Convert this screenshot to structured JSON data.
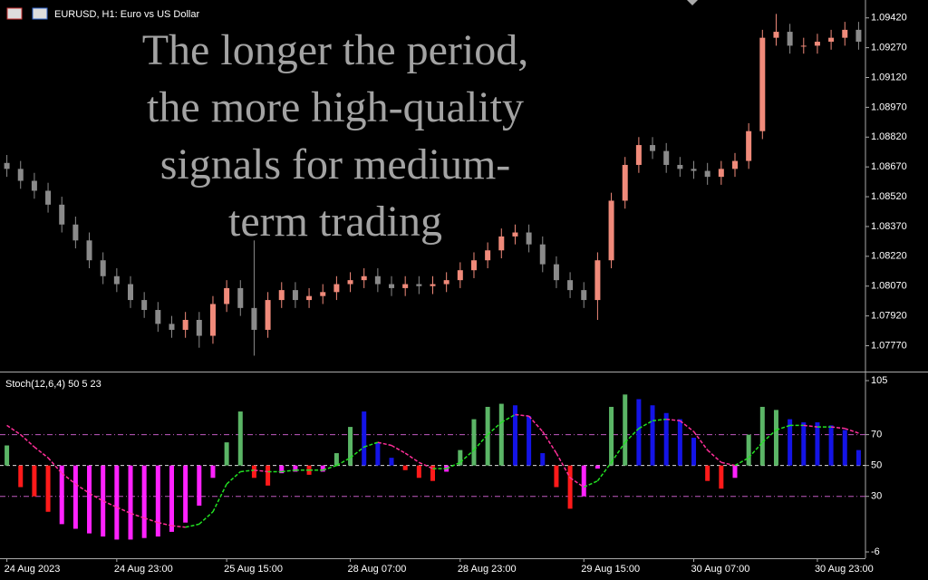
{
  "chart_data": [
    {
      "type": "candlestick",
      "title": "EURUSD, H1:  Euro vs US Dollar",
      "annotation": [
        "The longer the period,",
        "the more high-quality",
        "signals for medium-",
        "term trading"
      ],
      "up_color": "#f08a7a",
      "down_color": "#8a8a8a",
      "open": [
        1.0869,
        1.0866,
        1.086,
        1.0855,
        1.0848,
        1.0838,
        1.083,
        1.082,
        1.0812,
        1.0808,
        1.08,
        1.0795,
        1.0788,
        1.0785,
        1.079,
        1.0782,
        1.0798,
        1.0806,
        1.0796,
        1.0785,
        1.08,
        1.0805,
        1.08,
        1.0802,
        1.0804,
        1.0808,
        1.081,
        1.0812,
        1.0808,
        1.0806,
        1.0808,
        1.0807,
        1.0808,
        1.081,
        1.0815,
        1.082,
        1.0825,
        1.0832,
        1.0834,
        1.0828,
        1.0818,
        1.081,
        1.0805,
        1.08,
        1.082,
        1.085,
        1.0868,
        1.0878,
        1.0875,
        1.0868,
        1.0866,
        1.0865,
        1.0862,
        1.0866,
        1.087,
        1.0885,
        1.0932,
        1.0935,
        1.0928,
        1.0928,
        1.093,
        1.0932,
        1.0936
      ],
      "high": [
        1.0873,
        1.087,
        1.0864,
        1.0859,
        1.0852,
        1.0842,
        1.0834,
        1.0824,
        1.0816,
        1.0812,
        1.0804,
        1.0799,
        1.0792,
        1.0794,
        1.0794,
        1.0802,
        1.081,
        1.081,
        1.083,
        1.0804,
        1.0809,
        1.0809,
        1.0806,
        1.0808,
        1.0812,
        1.0814,
        1.0816,
        1.0816,
        1.0812,
        1.0812,
        1.0812,
        1.0812,
        1.0814,
        1.0819,
        1.0824,
        1.0829,
        1.0836,
        1.0838,
        1.0838,
        1.0832,
        1.0822,
        1.0814,
        1.0809,
        1.0824,
        1.0854,
        1.0872,
        1.0882,
        1.0882,
        1.0879,
        1.0872,
        1.087,
        1.0869,
        1.087,
        1.0874,
        1.0889,
        1.0936,
        1.0944,
        1.0939,
        1.0932,
        1.0934,
        1.0936,
        1.094,
        1.094
      ],
      "low": [
        1.0862,
        1.0856,
        1.0851,
        1.0844,
        1.0834,
        1.0826,
        1.0816,
        1.0808,
        1.0804,
        1.0796,
        1.0791,
        1.0784,
        1.0781,
        1.0781,
        1.0776,
        1.0778,
        1.0794,
        1.0792,
        1.0772,
        1.0781,
        1.0796,
        1.0796,
        1.0796,
        1.0798,
        1.08,
        1.0804,
        1.0806,
        1.0804,
        1.0802,
        1.0802,
        1.0803,
        1.0803,
        1.0804,
        1.0806,
        1.0811,
        1.0816,
        1.0821,
        1.0828,
        1.0824,
        1.0814,
        1.0806,
        1.0801,
        1.0796,
        1.079,
        1.0816,
        1.0846,
        1.0864,
        1.0871,
        1.0864,
        1.0862,
        1.0861,
        1.0858,
        1.0858,
        1.0862,
        1.0866,
        1.0881,
        1.0928,
        1.0924,
        1.0924,
        1.0924,
        1.0926,
        1.0928,
        1.0926
      ],
      "close": [
        1.0866,
        1.086,
        1.0855,
        1.0848,
        1.0838,
        1.083,
        1.082,
        1.0812,
        1.0808,
        1.08,
        1.0795,
        1.0788,
        1.0785,
        1.079,
        1.0782,
        1.0798,
        1.0806,
        1.0796,
        1.0785,
        1.08,
        1.0805,
        1.08,
        1.0802,
        1.0804,
        1.0808,
        1.081,
        1.0812,
        1.0808,
        1.0806,
        1.0808,
        1.0807,
        1.0808,
        1.081,
        1.0815,
        1.082,
        1.0825,
        1.0832,
        1.0834,
        1.0828,
        1.0818,
        1.081,
        1.0805,
        1.08,
        1.082,
        1.085,
        1.0868,
        1.0878,
        1.0875,
        1.0868,
        1.0866,
        1.0865,
        1.0862,
        1.0866,
        1.087,
        1.0885,
        1.0932,
        1.0935,
        1.0928,
        1.0928,
        1.093,
        1.0932,
        1.0936,
        1.093
      ],
      "ylim": [
        1.0764,
        1.0951
      ],
      "yticks": [
        {
          "value": 1.0942,
          "label": "1.09420"
        },
        {
          "value": 1.0927,
          "label": "1.09270"
        },
        {
          "value": 1.0912,
          "label": "1.09120"
        },
        {
          "value": 1.0897,
          "label": "1.08970"
        },
        {
          "value": 1.0882,
          "label": "1.08820"
        },
        {
          "value": 1.0867,
          "label": "1.08670"
        },
        {
          "value": 1.0852,
          "label": "1.08520"
        },
        {
          "value": 1.0837,
          "label": "1.08370"
        },
        {
          "value": 1.0822,
          "label": "1.08220"
        },
        {
          "value": 1.0807,
          "label": "1.08070"
        },
        {
          "value": 1.0792,
          "label": "1.07920"
        },
        {
          "value": 1.0777,
          "label": "1.07770"
        }
      ]
    },
    {
      "type": "histogram",
      "title": "Stoch(12,6,4) 50 5 23",
      "categories": [
        "24 Aug 2023",
        null,
        null,
        null,
        null,
        null,
        null,
        null,
        "24 Aug 23:00",
        null,
        null,
        null,
        null,
        null,
        null,
        null,
        "25 Aug 15:00",
        null,
        null,
        null,
        null,
        null,
        null,
        null,
        null,
        "28 Aug 07:00",
        null,
        null,
        null,
        null,
        null,
        null,
        null,
        "28 Aug 23:00",
        null,
        null,
        null,
        null,
        null,
        null,
        null,
        null,
        "29 Aug 15:00",
        null,
        null,
        null,
        null,
        null,
        null,
        null,
        "30 Aug 07:00",
        null,
        null,
        null,
        null,
        null,
        null,
        null,
        null,
        "30 Aug 23:00",
        null,
        null,
        null
      ],
      "values": [
        63,
        36,
        30,
        20,
        12,
        9,
        6,
        4,
        2,
        2,
        3,
        4,
        7,
        13,
        24,
        42,
        65,
        85,
        42,
        37,
        45,
        46,
        44,
        46,
        58,
        75,
        85,
        65,
        55,
        47,
        42,
        40,
        46,
        60,
        80,
        88,
        90,
        89,
        82,
        58,
        36,
        22,
        30,
        48,
        88,
        96,
        93,
        89,
        84,
        80,
        68,
        40,
        35,
        42,
        70,
        88,
        86,
        80,
        78,
        78,
        76,
        73,
        60
      ],
      "colors": [
        "#5bb566",
        "#ff1a1a",
        "#ff1a1a",
        "#ff1a1a",
        "#ff22ff",
        "#ff22ff",
        "#ff22ff",
        "#ff22ff",
        "#ff22ff",
        "#ff22ff",
        "#ff22ff",
        "#ff22ff",
        "#ff22ff",
        "#ff22ff",
        "#ff22ff",
        "#ff22ff",
        "#5bb566",
        "#5bb566",
        "#ff1a1a",
        "#ff1a1a",
        "#ff22ff",
        "#ff22ff",
        "#ff1a1a",
        "#ff22ff",
        "#5bb566",
        "#5bb566",
        "#1414e6",
        "#1414e6",
        "#1414e6",
        "#ff1a1a",
        "#ff1a1a",
        "#ff1a1a",
        "#ff22ff",
        "#5bb566",
        "#5bb566",
        "#5bb566",
        "#5bb566",
        "#1414e6",
        "#1414e6",
        "#1414e6",
        "#ff1a1a",
        "#ff1a1a",
        "#ff22ff",
        "#ff22ff",
        "#5bb566",
        "#5bb566",
        "#1414e6",
        "#1414e6",
        "#1414e6",
        "#1414e6",
        "#1414e6",
        "#ff1a1a",
        "#ff1a1a",
        "#ff22ff",
        "#5bb566",
        "#5bb566",
        "#5bb566",
        "#1414e6",
        "#1414e6",
        "#1414e6",
        "#1414e6",
        "#1414e6",
        "#1414e6"
      ],
      "baseline": 50,
      "signal": [
        76,
        70,
        62,
        55,
        45,
        38,
        32,
        27,
        23,
        19,
        16,
        13,
        11,
        10,
        12,
        20,
        38,
        46,
        47,
        46,
        46,
        47,
        47,
        47,
        50,
        55,
        62,
        65,
        63,
        58,
        52,
        48,
        48,
        52,
        60,
        70,
        78,
        83,
        82,
        72,
        58,
        42,
        36,
        40,
        52,
        65,
        74,
        79,
        80,
        79,
        72,
        60,
        52,
        50,
        55,
        65,
        73,
        76,
        76,
        75,
        75,
        74,
        71
      ],
      "signal_up_color": "#22e022",
      "signal_down_color": "#ff2f9a",
      "levels": [
        70,
        50,
        30
      ],
      "ylim": [
        -10.1,
        109.7
      ],
      "yticks": [
        105,
        70,
        50,
        30,
        -6
      ]
    }
  ]
}
